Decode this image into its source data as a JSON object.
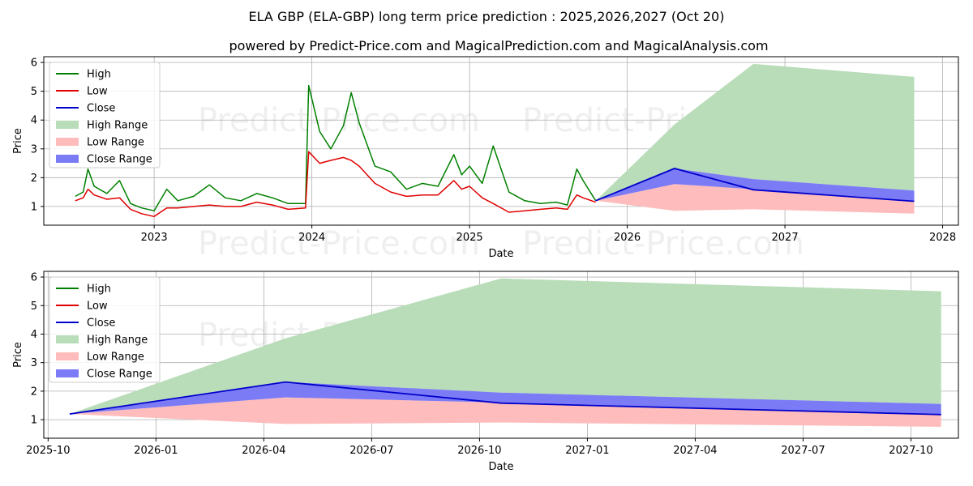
{
  "title": "ELA GBP (ELA-GBP) long term price prediction : 2025,2026,2027 (Oct 20)",
  "subtitle": "powered by Predict-Price.com and MagicalPrediction.com and MagicalAnalysis.com",
  "watermark": "Predict-Price.com",
  "colors": {
    "high": "#008000",
    "low": "#e00000",
    "close": "#0000cc",
    "high_range": "#b9dcb9",
    "low_range": "#ffbcbc",
    "close_range": "#7b7bf5"
  },
  "chart_data": [
    {
      "type": "line",
      "name": "top-panel",
      "xlabel": "Date",
      "ylabel": "Price",
      "xlim": [
        2022.3,
        2028.1
      ],
      "ylim": [
        0.35,
        6.2
      ],
      "xticks": [
        2023,
        2024,
        2025,
        2026,
        2027,
        2028
      ],
      "xtick_labels": [
        "2023",
        "2024",
        "2025",
        "2026",
        "2027",
        "2028"
      ],
      "yticks": [
        1,
        2,
        3,
        4,
        5,
        6
      ],
      "ytick_labels": [
        "1",
        "2",
        "3",
        "4",
        "5",
        "6"
      ],
      "legend": [
        "High",
        "Low",
        "Close",
        "High Range",
        "Low Range",
        "Close Range"
      ],
      "history": {
        "x": [
          2022.5,
          2022.55,
          2022.58,
          2022.62,
          2022.7,
          2022.78,
          2022.85,
          2022.92,
          2023.0,
          2023.08,
          2023.15,
          2023.25,
          2023.35,
          2023.45,
          2023.55,
          2023.65,
          2023.75,
          2023.85,
          2023.96,
          2023.98,
          2024.05,
          2024.12,
          2024.2,
          2024.25,
          2024.3,
          2024.4,
          2024.5,
          2024.6,
          2024.7,
          2024.8,
          2024.9,
          2024.95,
          2025.0,
          2025.08,
          2025.15,
          2025.25,
          2025.35,
          2025.45,
          2025.55,
          2025.62,
          2025.68,
          2025.72,
          2025.8
        ],
        "high": [
          1.35,
          1.5,
          2.3,
          1.7,
          1.45,
          1.9,
          1.1,
          0.95,
          0.85,
          1.6,
          1.2,
          1.35,
          1.75,
          1.3,
          1.2,
          1.45,
          1.3,
          1.1,
          1.1,
          5.2,
          3.6,
          3.0,
          3.8,
          4.95,
          3.9,
          2.4,
          2.2,
          1.6,
          1.8,
          1.7,
          2.8,
          2.1,
          2.4,
          1.8,
          3.1,
          1.5,
          1.2,
          1.1,
          1.15,
          1.05,
          2.3,
          1.9,
          1.2
        ],
        "low": [
          1.2,
          1.3,
          1.6,
          1.4,
          1.25,
          1.3,
          0.9,
          0.75,
          0.65,
          0.95,
          0.95,
          1.0,
          1.05,
          1.0,
          1.0,
          1.15,
          1.05,
          0.9,
          0.95,
          2.9,
          2.5,
          2.6,
          2.7,
          2.6,
          2.4,
          1.8,
          1.5,
          1.35,
          1.4,
          1.4,
          1.9,
          1.6,
          1.7,
          1.3,
          1.1,
          0.8,
          0.85,
          0.9,
          0.95,
          0.9,
          1.4,
          1.3,
          1.15
        ]
      },
      "forecast": {
        "x": [
          2025.8,
          2026.3,
          2026.8,
          2027.82
        ],
        "close": [
          1.2,
          2.32,
          1.58,
          1.18
        ],
        "close_range_upper": [
          1.2,
          2.32,
          1.95,
          1.55
        ],
        "close_range_lower": [
          1.2,
          1.78,
          1.6,
          1.2
        ],
        "high_range_upper": [
          1.2,
          3.85,
          5.95,
          5.5
        ],
        "low_range_lower": [
          1.2,
          0.85,
          0.9,
          0.75
        ]
      }
    },
    {
      "type": "line",
      "name": "bottom-panel",
      "xlabel": "Date",
      "ylabel": "Price",
      "xlim": [
        2025.74,
        2027.86
      ],
      "ylim": [
        0.35,
        6.2
      ],
      "xticks": [
        2025.75,
        2026.0,
        2026.25,
        2026.5,
        2026.75,
        2027.0,
        2027.25,
        2027.5,
        2027.75
      ],
      "xtick_labels": [
        "2025-10",
        "2026-01",
        "2026-04",
        "2026-07",
        "2026-10",
        "2027-01",
        "2027-04",
        "2027-07",
        "2027-10"
      ],
      "yticks": [
        1,
        2,
        3,
        4,
        5,
        6
      ],
      "ytick_labels": [
        "1",
        "2",
        "3",
        "4",
        "5",
        "6"
      ],
      "legend": [
        "High",
        "Low",
        "Close",
        "High Range",
        "Low Range",
        "Close Range"
      ],
      "forecast": {
        "x": [
          2025.8,
          2026.3,
          2026.8,
          2027.82
        ],
        "close": [
          1.2,
          2.32,
          1.58,
          1.18
        ],
        "close_range_upper": [
          1.2,
          2.32,
          1.95,
          1.55
        ],
        "close_range_lower": [
          1.2,
          1.78,
          1.6,
          1.2
        ],
        "high_range_upper": [
          1.2,
          3.85,
          5.95,
          5.5
        ],
        "low_range_lower": [
          1.2,
          0.85,
          0.9,
          0.75
        ]
      }
    }
  ]
}
